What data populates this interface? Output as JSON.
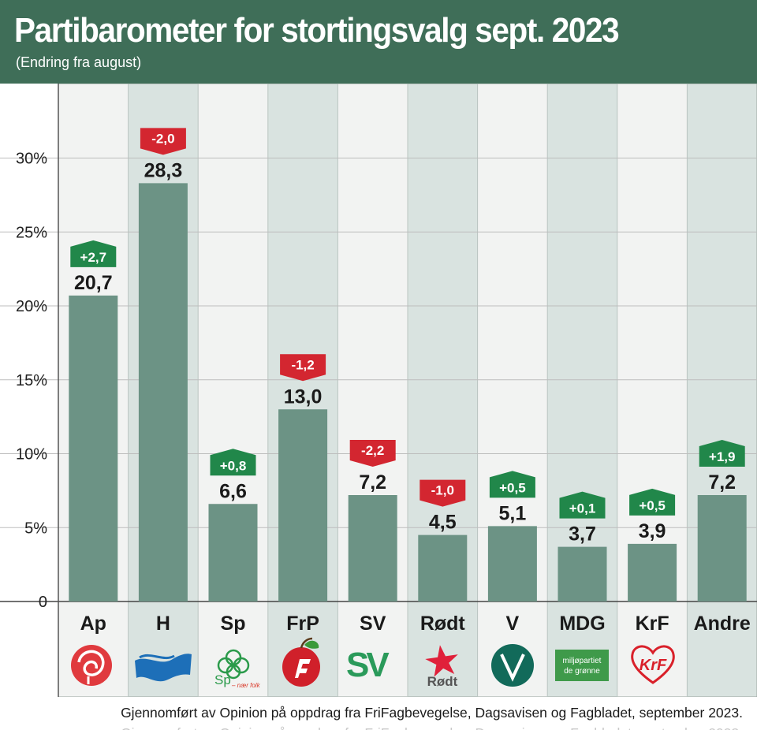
{
  "chart_data": {
    "type": "bar",
    "title": "Partibarometer for stortingsvalg sept. 2023",
    "subtitle": "(Endring fra august)",
    "categories": [
      "Ap",
      "H",
      "Sp",
      "FrP",
      "SV",
      "Rødt",
      "V",
      "MDG",
      "KrF",
      "Andre"
    ],
    "values": [
      20.7,
      28.3,
      6.6,
      13.0,
      7.2,
      4.5,
      5.1,
      3.7,
      3.9,
      7.2
    ],
    "value_labels": [
      "20,7",
      "28,3",
      "6,6",
      "13,0",
      "7,2",
      "4,5",
      "5,1",
      "3,7",
      "3,9",
      "7,2"
    ],
    "changes": [
      2.7,
      -2.0,
      0.8,
      -1.2,
      -2.2,
      -1.0,
      0.5,
      0.1,
      0.5,
      1.9
    ],
    "change_labels": [
      "+2,7",
      "-2,0",
      "+0,8",
      "-1,2",
      "-2,2",
      "-1,0",
      "+0,5",
      "+0,1",
      "+0,5",
      "+1,9"
    ],
    "y_ticks": [
      0,
      5,
      10,
      15,
      20,
      25,
      30
    ],
    "y_tick_labels": [
      "0",
      "5%",
      "10%",
      "15%",
      "20%",
      "25%",
      "30%"
    ],
    "ylim": [
      0,
      35
    ],
    "xlabel": "",
    "ylabel": "",
    "grid": true,
    "source": "Gjennomført av Opinion på oppdrag fra FriFagbevegelse, Dagsavisen og Fagbladet, september 2023."
  },
  "logos": {
    "sp_text": "Sp",
    "sp_tagline": "– nær folk",
    "sv_text": "SV",
    "rodt_text": "Rødt",
    "mdg_line1": "miljøpartiet",
    "mdg_line2": "de grønne",
    "krf_text": "KrF"
  },
  "colors": {
    "header_bg": "#3f6e58",
    "bar": "#6c9385",
    "col_light": "#f2f3f2",
    "col_shade": "#d9e3e0",
    "positive": "#21874a",
    "negative": "#d32630",
    "grid": "#bdbdbd"
  }
}
